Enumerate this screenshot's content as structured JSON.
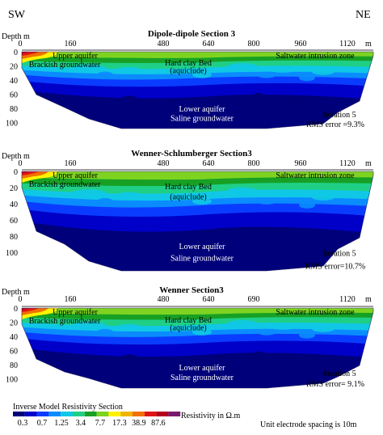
{
  "orientation": {
    "left": "SW",
    "right": "NE"
  },
  "sections": [
    {
      "title": "Dipole-dipole Section 3",
      "depth_label": "Depth m",
      "x_unit": "m",
      "x_ticks": [
        "0",
        "160",
        "480",
        "640",
        "800",
        "960",
        "1120"
      ],
      "y_ticks": [
        "0",
        "20",
        "40",
        "60",
        "80",
        "100"
      ],
      "labels": [
        "Upper aquifer",
        "Brackish groundwater",
        "Hard clay Bed",
        "(aquiclude)",
        "Saltwater intrusion zone",
        "Lower aquifer",
        "Saline groundwater"
      ],
      "iteration": "Iteration 5",
      "rms": "RMS error =9.3%"
    },
    {
      "title": "Wenner-Schlumberger Section3",
      "depth_label": "Depth m",
      "x_unit": "m",
      "x_ticks": [
        "0",
        "160",
        "480",
        "640",
        "800",
        "960",
        "1120"
      ],
      "y_ticks": [
        "0",
        "20",
        "40",
        "60",
        "80",
        "100"
      ],
      "labels": [
        "Upper aquifer",
        "Brackish groundwater",
        "Hard clay Bed",
        "(aquiclude)",
        "Saltwater intrusion zone",
        "Lower aquifer",
        "Saline groundwater"
      ],
      "iteration": "Iteration 5",
      "rms": "RMS error=10.7%"
    },
    {
      "title": "Wenner Section3",
      "depth_label": "Depth m",
      "x_unit": "m",
      "x_ticks": [
        "0",
        "160",
        "480",
        "640",
        "690",
        "1120"
      ],
      "y_ticks": [
        "0",
        "20",
        "40",
        "60",
        "80",
        "100"
      ],
      "labels": [
        "Upper aquifer",
        "Brackish groundwater",
        "Hard clay Bed",
        "(aquiclude)",
        "Saltwater intrusion zone",
        "Lower aquifer",
        "Saline groundwater"
      ],
      "iteration": "Iteration 5",
      "rms": "RMS error= 9.1%"
    }
  ],
  "legend": {
    "title": "Inverse Model Resistivity Section",
    "values": [
      "0.3",
      "0.7",
      "1.25",
      "3.4",
      "7.7",
      "17.3",
      "38.9",
      "87.6"
    ],
    "unit_label": "Resistivity in Ω.m",
    "colors": [
      "#00007a",
      "#0000c8",
      "#0a3cff",
      "#0a8cff",
      "#10c8e6",
      "#1fcf86",
      "#17a024",
      "#7ed321",
      "#fff200",
      "#f0b400",
      "#f07000",
      "#e01414",
      "#b4001e",
      "#7a1a6e"
    ]
  },
  "note": "Unit electrode spacing is 10m"
}
